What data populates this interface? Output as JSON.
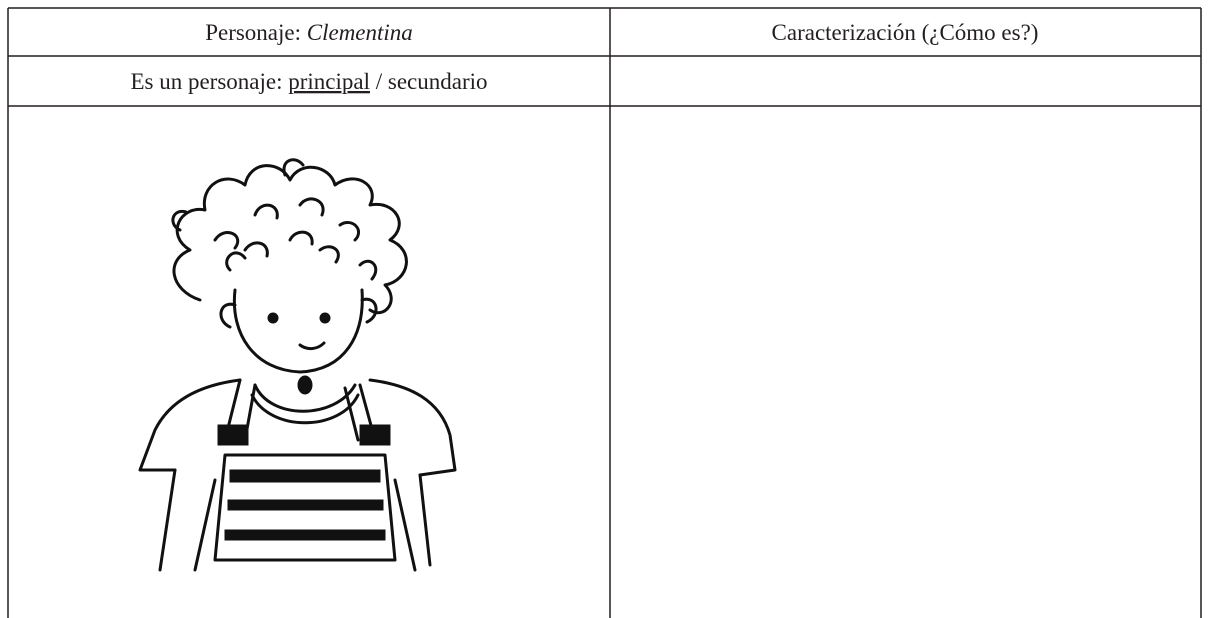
{
  "table": {
    "header": [
      {
        "label": "Personaje:",
        "name": "Clementina"
      },
      {
        "label": "Caracterización (¿Cómo es?)"
      }
    ],
    "role": {
      "label": "Es un personaje:",
      "options": [
        "principal",
        "secundario"
      ],
      "separator": "/"
    }
  }
}
